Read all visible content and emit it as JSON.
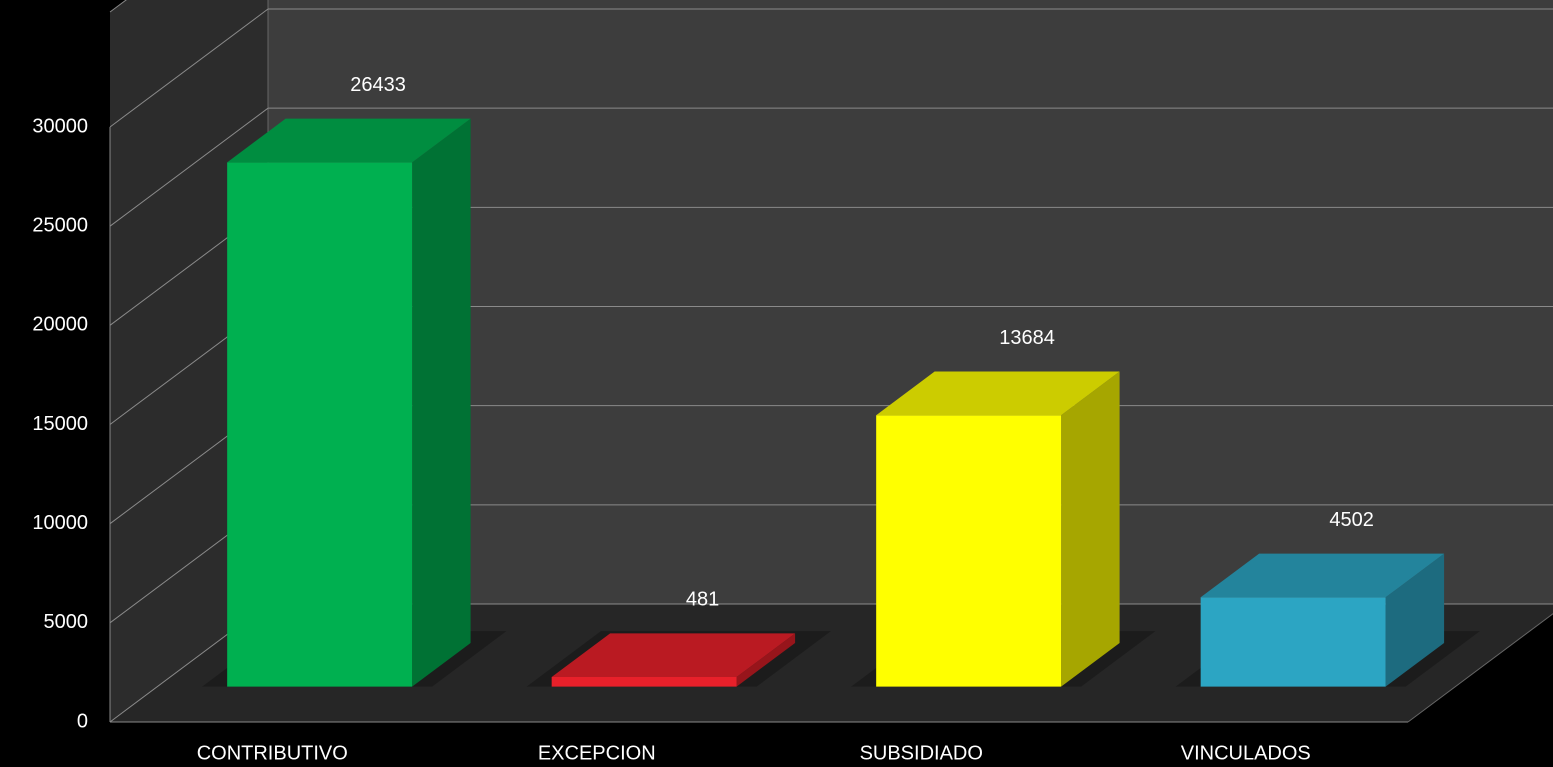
{
  "chart_data": {
    "type": "bar",
    "categories": [
      "CONTRIBUTIVO",
      "EXCEPCION",
      "SUBSIDIADO",
      "VINCULADOS"
    ],
    "values": [
      26433,
      481,
      13684,
      4502
    ],
    "colors": [
      "#00b050",
      "#e8202a",
      "#ffff00",
      "#2ca5c3"
    ],
    "ylim": [
      0,
      30000
    ],
    "yticks": [
      0,
      5000,
      10000,
      15000,
      20000,
      25000,
      30000
    ],
    "grid": true,
    "three_d": true
  }
}
